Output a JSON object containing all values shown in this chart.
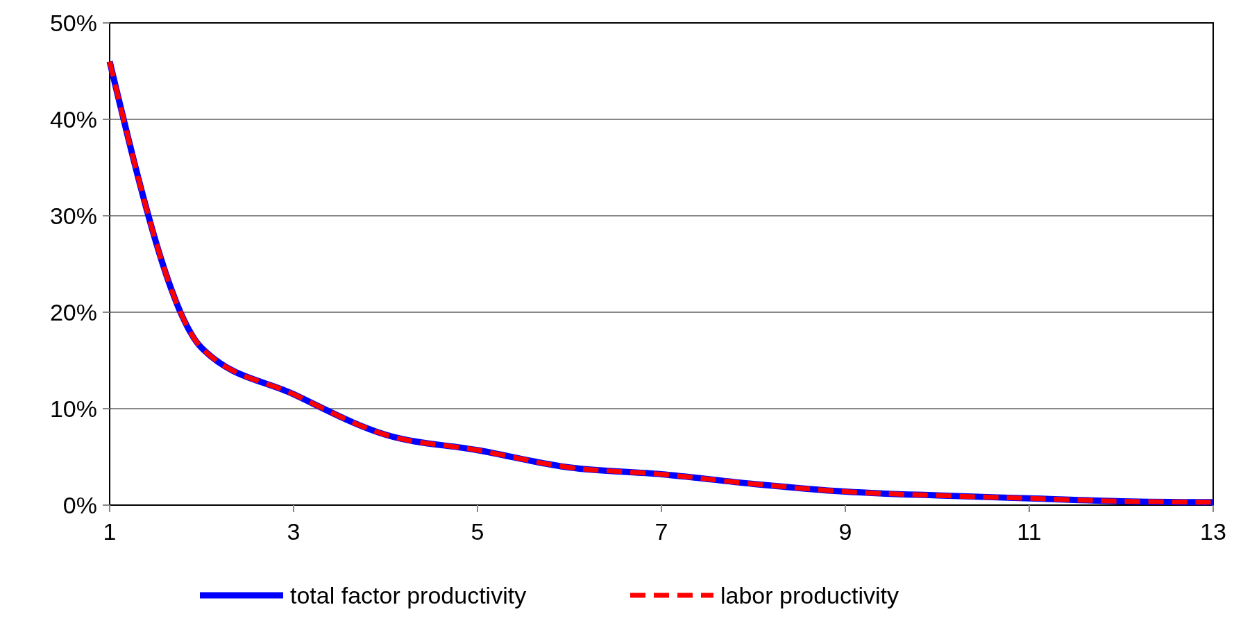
{
  "chart_data": {
    "type": "line",
    "x": [
      1,
      2,
      3,
      4,
      5,
      6,
      7,
      8,
      9,
      10,
      11,
      12,
      13
    ],
    "series": [
      {
        "name": "total factor productivity",
        "color": "#0000ff",
        "line_style": "solid",
        "values": [
          46,
          16.3,
          11.5,
          7.3,
          5.7,
          3.9,
          3.2,
          2.2,
          1.4,
          1.0,
          0.7,
          0.4,
          0.3
        ]
      },
      {
        "name": "labor productivity",
        "color": "#ff0000",
        "line_style": "dashed",
        "values": [
          46,
          16.3,
          11.5,
          7.3,
          5.7,
          3.9,
          3.2,
          2.2,
          1.4,
          1.0,
          0.7,
          0.4,
          0.3
        ]
      }
    ],
    "xlim": [
      1,
      13
    ],
    "xticks": [
      1,
      3,
      5,
      7,
      9,
      11,
      13
    ],
    "ylim": [
      0,
      50
    ],
    "yticks": [
      {
        "value": 0,
        "label": "0%"
      },
      {
        "value": 10,
        "label": "10%"
      },
      {
        "value": 20,
        "label": "20%"
      },
      {
        "value": 30,
        "label": "30%"
      },
      {
        "value": 40,
        "label": "40%"
      },
      {
        "value": 50,
        "label": "50%"
      }
    ],
    "grid": "y",
    "legend": "bottom",
    "marker": "none"
  }
}
